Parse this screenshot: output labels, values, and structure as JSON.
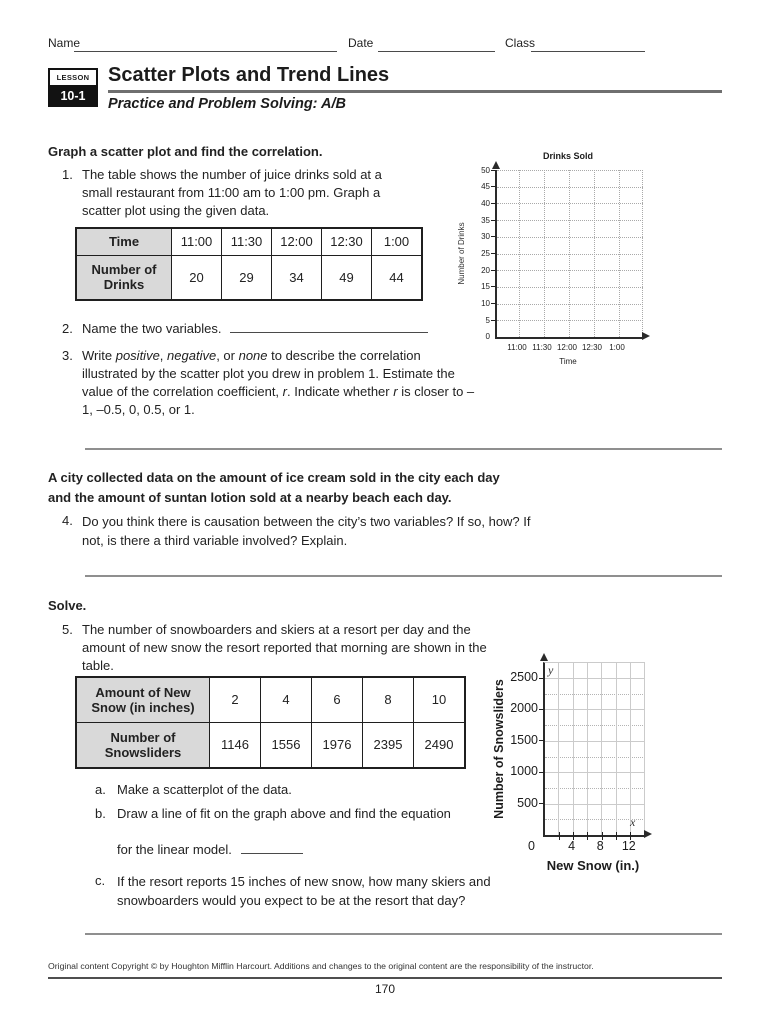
{
  "colors": {
    "table_header_bg": "#d9d9d9",
    "answer_line": "#8f8f8f",
    "badge_bg": "#121212"
  },
  "fields": {
    "name_label": "Name",
    "date_label": "Date",
    "class_label": "Class"
  },
  "lesson": {
    "badge_top": "LESSON",
    "badge_number": "10-1",
    "title": "Scatter Plots and Trend Lines",
    "subtitle": "Practice and Problem Solving: A/B"
  },
  "section1": {
    "heading": "Graph a scatter plot and find the correlation.",
    "q1_number": "1.",
    "q1_text": "The table shows the number of juice drinks sold at a small restaurant from 11:00 am to 1:00 pm. Graph a scatter plot using the given data.",
    "table1": {
      "row1_header": "Time",
      "row1": [
        "11:00",
        "11:30",
        "12:00",
        "12:30",
        "1:00"
      ],
      "row2_header": "Number of Drinks",
      "row2": [
        "20",
        "29",
        "34",
        "49",
        "44"
      ]
    },
    "q2_number": "2.",
    "q2_text": "Name the two variables.",
    "q3_number": "3.",
    "q3": {
      "t1": "Write ",
      "i1": "positive",
      "t2": ", ",
      "i2": "negative",
      "t3": ", or ",
      "i3": "none",
      "t4": " to describe the correlation illustrated by the scatter plot you drew in problem 1. Estimate the value of the correlation coefficient, ",
      "i4": "r",
      "t5": ". Indicate whether ",
      "i5": "r",
      "t6": " is closer to –1, –0.5, 0, 0.5, or 1."
    }
  },
  "section2": {
    "intro": "A city collected data on the amount of ice cream sold in the city each day and the amount of suntan lotion sold at a nearby beach each day.",
    "q4_number": "4.",
    "q4_text": "Do you think there is causation between the city’s two variables? If so, how? If not, is there a third variable involved? Explain."
  },
  "section3": {
    "heading": "Solve.",
    "q5_number": "5.",
    "q5_text": "The number of snowboarders and skiers at a resort per day and the amount of new snow the resort reported that morning are shown in the table.",
    "table2": {
      "row1_header": "Amount of New Snow (in inches)",
      "row1": [
        "2",
        "4",
        "6",
        "8",
        "10"
      ],
      "row2_header": "Number of Snowsliders",
      "row2": [
        "1146",
        "1556",
        "1976",
        "2395",
        "2490"
      ]
    },
    "qa_letter": "a.",
    "qa_text": "Make a scatterplot of the data.",
    "qb_letter": "b.",
    "qb_text": "Draw a line of fit on the graph above and find the equation",
    "qb_text2": "for the linear model.",
    "qc_letter": "c.",
    "qc_text": "If the resort reports 15 inches of new snow, how many skiers and snowboarders would you expect to be at the resort that day?"
  },
  "footer": {
    "copyright": "Original content Copyright © by Houghton Mifflin Harcourt. Additions and changes to the original content are the responsibility of the instructor.",
    "page_number": "170"
  },
  "chart_data": [
    {
      "type": "scatter",
      "title": "Drinks Sold",
      "xlabel": "Time",
      "ylabel": "Number of Drinks",
      "x_ticks": [
        "11:00",
        "11:30",
        "12:00",
        "12:30",
        "1:00"
      ],
      "y_ticks": [
        0,
        5,
        10,
        15,
        20,
        25,
        30,
        35,
        40,
        45,
        50
      ],
      "ylim": [
        0,
        50
      ],
      "grid": "dotted",
      "legend": "none",
      "points": [],
      "intended_data": {
        "x": [
          "11:00",
          "11:30",
          "12:00",
          "12:30",
          "1:00"
        ],
        "y": [
          20,
          29,
          34,
          49,
          44
        ]
      },
      "note": "empty grid for student to plot"
    },
    {
      "type": "scatter",
      "title": "",
      "xlabel": "New Snow (in.)",
      "ylabel": "Number of Snowsliders",
      "x_axis_letter": "x",
      "y_axis_letter": "y",
      "x_ticks": [
        0,
        4,
        8,
        12
      ],
      "y_ticks": [
        0,
        500,
        1000,
        1500,
        2000,
        2500
      ],
      "xlim": [
        0,
        14
      ],
      "ylim": [
        0,
        2750
      ],
      "grid": "solid vertical + solid/dotted horizontal",
      "legend": "none",
      "points": [],
      "intended_data": {
        "x": [
          2,
          4,
          6,
          8,
          10
        ],
        "y": [
          1146,
          1556,
          1976,
          2395,
          2490
        ]
      },
      "note": "empty grid for student to plot"
    }
  ]
}
